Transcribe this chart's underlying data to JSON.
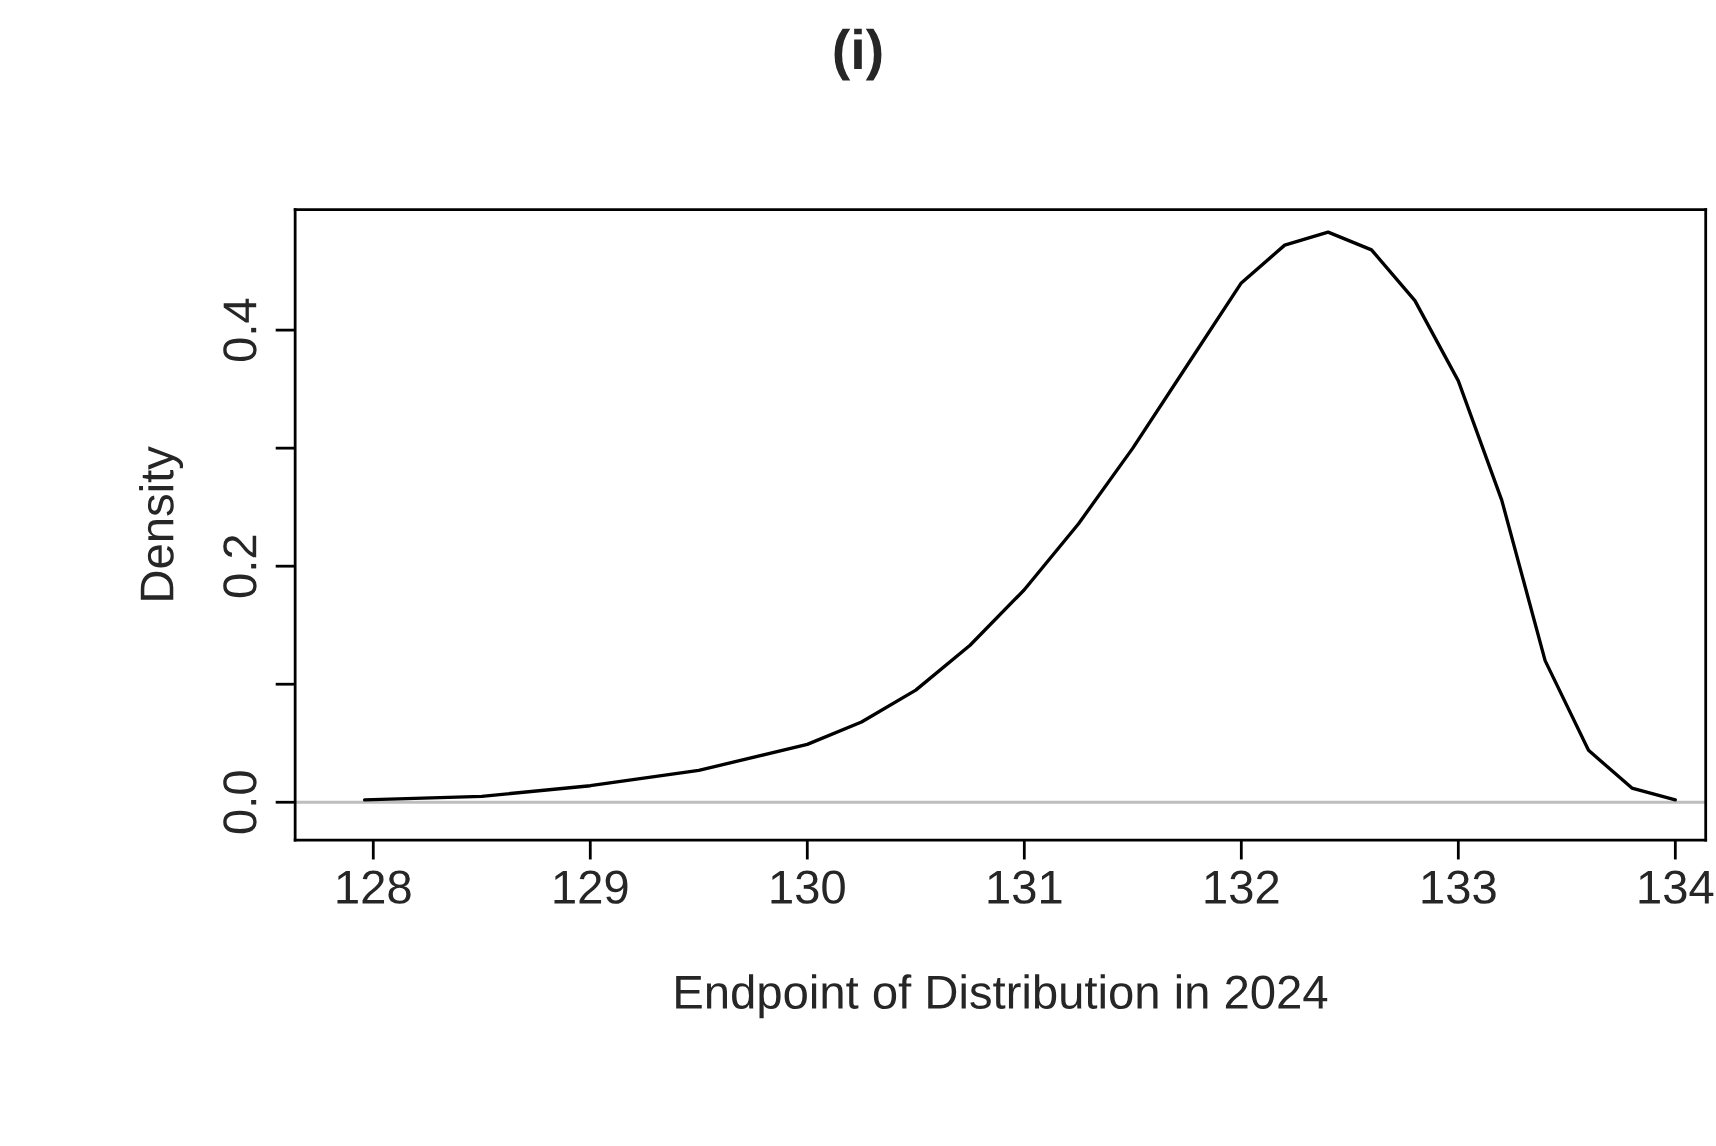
{
  "chart_data": {
    "type": "line",
    "title": "(i)",
    "xlabel": "Endpoint of Distribution in 2024",
    "ylabel": "Density",
    "x": [
      127.96,
      128.5,
      129,
      129.5,
      130,
      130.25,
      130.5,
      130.75,
      131,
      131.25,
      131.5,
      131.75,
      132,
      132.2,
      132.4,
      132.6,
      132.8,
      133,
      133.2,
      133.4,
      133.6,
      133.8,
      134
    ],
    "series": [
      {
        "color": "#000000",
        "values": [
          0.002,
          0.005,
          0.014,
          0.027,
          0.049,
          0.068,
          0.095,
          0.133,
          0.18,
          0.236,
          0.3,
          0.37,
          0.44,
          0.472,
          0.483,
          0.468,
          0.425,
          0.357,
          0.256,
          0.12,
          0.044,
          0.012,
          0.002
        ]
      }
    ],
    "xlim": [
      127.64,
      134.14
    ],
    "ylim": [
      -0.032,
      0.502
    ],
    "xticks": [
      128,
      129,
      130,
      131,
      132,
      133,
      134
    ],
    "yticks": [
      {
        "value": 0,
        "label": "0.0"
      },
      {
        "value": 0.1,
        "label": null
      },
      {
        "value": 0.2,
        "label": "0.2"
      },
      {
        "value": 0.3,
        "label": null
      },
      {
        "value": 0.4,
        "label": "0.4"
      }
    ],
    "ref_lines": [
      {
        "axis": "y",
        "value": 0,
        "color": "#bebebe"
      }
    ],
    "grid": false,
    "legend": false
  }
}
